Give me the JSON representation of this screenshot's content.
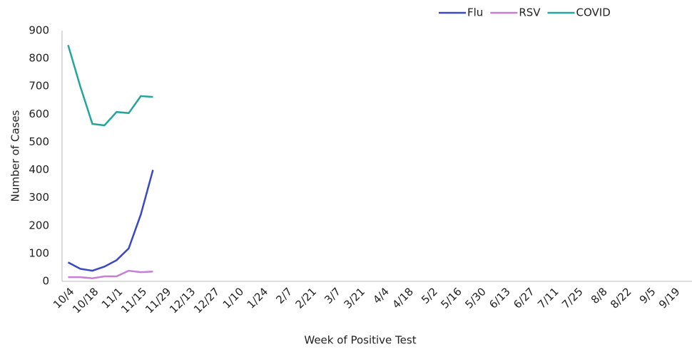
{
  "chart_data": {
    "type": "line",
    "x_label": "Week of Positive Test",
    "y_label": "Number of Cases",
    "categories": [
      "10/4",
      null,
      "10/18",
      null,
      "11/1",
      null,
      "11/15",
      null,
      "11/29",
      null,
      "12/13",
      null,
      "12/27",
      null,
      "1/10",
      null,
      "1/24",
      null,
      "2/7",
      null,
      "2/21",
      null,
      "3/7",
      null,
      "3/21",
      null,
      "4/4",
      null,
      "4/18",
      null,
      "5/2",
      null,
      "5/16",
      null,
      "5/30",
      null,
      "6/13",
      null,
      "6/27",
      null,
      "7/11",
      null,
      "7/25",
      null,
      "8/8",
      null,
      "8/22",
      null,
      "9/5",
      null,
      "9/19",
      null
    ],
    "series": [
      {
        "name": "Flu",
        "color": "#3a48c4",
        "values": [
          68,
          45,
          38,
          53,
          76,
          118,
          240,
          400,
          null,
          null,
          null,
          null,
          null,
          null,
          null,
          null,
          null,
          null,
          null,
          null,
          null,
          null,
          null,
          null,
          null,
          null,
          null,
          null,
          null,
          null,
          null,
          null,
          null,
          null,
          null,
          null,
          null,
          null,
          null,
          null,
          null,
          null,
          null,
          null,
          null,
          null,
          null,
          null,
          null,
          null,
          null,
          null
        ]
      },
      {
        "name": "RSV",
        "color": "#c77fd6",
        "values": [
          15,
          15,
          11,
          18,
          18,
          38,
          33,
          35,
          null,
          null,
          null,
          null,
          null,
          null,
          null,
          null,
          null,
          null,
          null,
          null,
          null,
          null,
          null,
          null,
          null,
          null,
          null,
          null,
          null,
          null,
          null,
          null,
          null,
          null,
          null,
          null,
          null,
          null,
          null,
          null,
          null,
          null,
          null,
          null,
          null,
          null,
          null,
          null,
          null,
          null,
          null,
          null
        ]
      },
      {
        "name": "COVID",
        "color": "#25a59a",
        "values": [
          848,
          700,
          565,
          560,
          608,
          604,
          665,
          662,
          null,
          null,
          null,
          null,
          null,
          null,
          null,
          null,
          null,
          null,
          null,
          null,
          null,
          null,
          null,
          null,
          null,
          null,
          null,
          null,
          null,
          null,
          null,
          null,
          null,
          null,
          null,
          null,
          null,
          null,
          null,
          null,
          null,
          null,
          null,
          null,
          null,
          null,
          null,
          null,
          null,
          null,
          null,
          null
        ]
      }
    ],
    "ylim": [
      0,
      900
    ],
    "yticks": [
      0,
      100,
      200,
      300,
      400,
      500,
      600,
      700,
      800,
      900
    ],
    "grid": false,
    "legend": "top-right"
  }
}
